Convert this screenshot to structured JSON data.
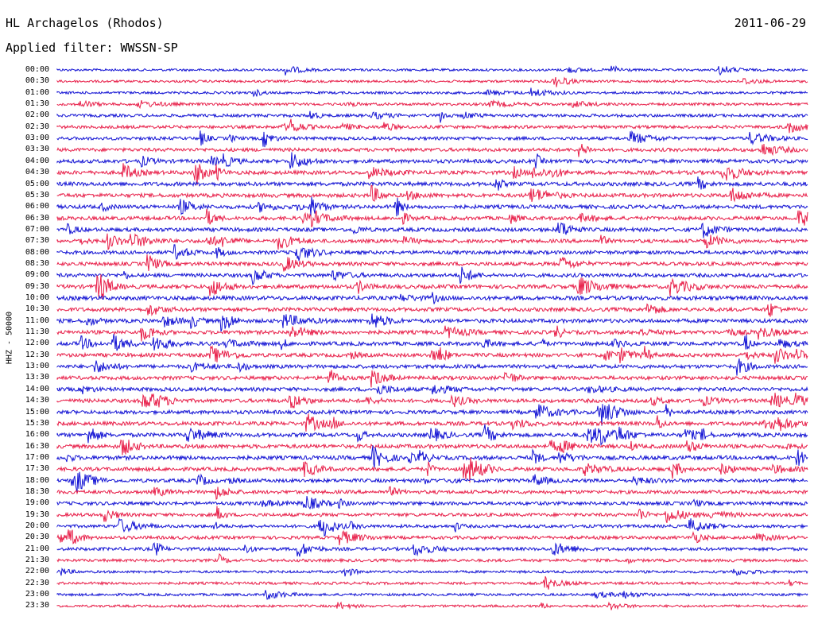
{
  "header": {
    "title": "HL Archagelos (Rhodos)",
    "date": "2011-06-29",
    "filter": "Applied filter: WWSSN-SP"
  },
  "colors": {
    "trace_even": "#1414d4",
    "trace_odd": "#e8204a",
    "background": "#ffffff"
  },
  "chart_data": {
    "type": "line",
    "title": "HL Archagelos (Rhodos)",
    "subtitle": "Applied filter: WWSSN-SP",
    "ylabel": "HHZ - 50000",
    "row_labels": [
      "00:00",
      "00:30",
      "01:00",
      "01:30",
      "02:00",
      "02:30",
      "03:00",
      "03:30",
      "04:00",
      "04:30",
      "05:00",
      "05:30",
      "06:00",
      "06:30",
      "07:00",
      "07:30",
      "08:00",
      "08:30",
      "09:00",
      "09:30",
      "10:00",
      "10:30",
      "11:00",
      "11:30",
      "12:00",
      "12:30",
      "13:00",
      "13:30",
      "14:00",
      "14:30",
      "15:00",
      "15:30",
      "16:00",
      "16:30",
      "17:00",
      "17:30",
      "18:00",
      "18:30",
      "19:00",
      "19:30",
      "20:00",
      "20:30",
      "21:00",
      "21:30",
      "22:00",
      "22:30",
      "23:00",
      "23:30"
    ],
    "minutes_per_row": 30,
    "series": [
      {
        "color": "#1414d4",
        "rows": "even"
      },
      {
        "color": "#e8204a",
        "rows": "odd"
      }
    ],
    "activity_level": [
      0.25,
      0.25,
      0.3,
      0.4,
      0.5,
      0.55,
      0.6,
      0.7,
      0.8,
      0.85,
      0.9,
      0.85,
      0.85,
      0.8,
      0.85,
      0.75,
      0.75,
      0.8,
      0.8,
      0.9,
      0.95,
      0.85,
      0.85,
      0.85,
      0.85,
      0.8,
      0.8,
      0.8,
      0.85,
      0.8,
      0.8,
      0.85,
      0.9,
      0.9,
      0.95,
      0.8,
      0.75,
      0.7,
      0.7,
      0.65,
      0.55,
      0.6,
      0.6,
      0.45,
      0.3,
      0.35,
      0.3,
      0.25
    ],
    "grid": false,
    "legend": "none"
  }
}
